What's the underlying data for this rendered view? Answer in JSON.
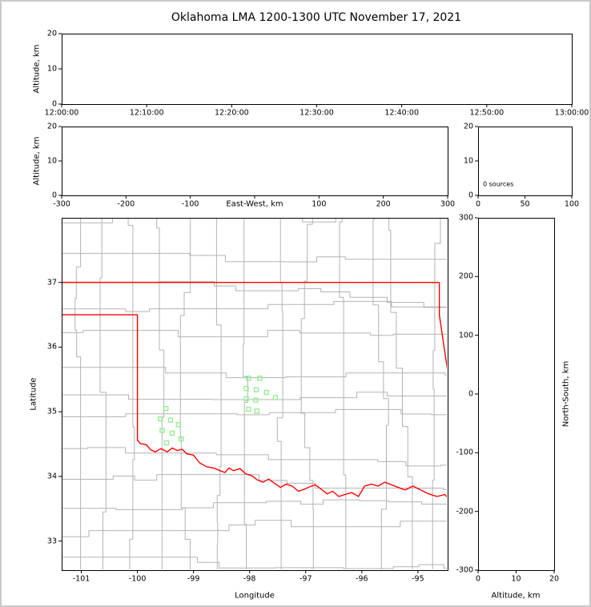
{
  "figure": {
    "title": "Oklahoma LMA 1200-1300 UTC November 17, 2021"
  },
  "labels": {
    "altitude": "Altitude, km",
    "east_west": "East-West, km",
    "north_south": "North-South, km",
    "latitude": "Latitude",
    "longitude": "Longitude",
    "sources_annotation": "0 sources"
  },
  "colors": {
    "axis": "#000000",
    "state_border": "#ff0000",
    "county_line": "#b3b3b3",
    "station_marker": "#90ee90",
    "figure_border": "#c9c9c9",
    "background": "#ffffff"
  },
  "chart_data": [
    {
      "id": "altitude_vs_time",
      "type": "scatter",
      "title": "",
      "xlabel": "",
      "ylabel": "Altitude, km",
      "xlim": [
        0,
        3600
      ],
      "ylim": [
        0,
        20
      ],
      "x_ticks": {
        "values": [
          0,
          600,
          1200,
          1800,
          2400,
          3000,
          3600
        ],
        "labels": [
          "12:00:00",
          "12:10:00",
          "12:20:00",
          "12:30:00",
          "12:40:00",
          "12:50:00",
          "13:00:00"
        ]
      },
      "y_ticks": {
        "values": [
          0,
          10,
          20
        ],
        "labels": [
          "0",
          "10",
          "20"
        ]
      },
      "points": []
    },
    {
      "id": "altitude_vs_east_west",
      "type": "scatter",
      "title": "",
      "xlabel": "East-West, km",
      "ylabel": "Altitude, km",
      "xlim": [
        -300,
        300
      ],
      "ylim": [
        0,
        20
      ],
      "x_ticks": {
        "values": [
          -300,
          -200,
          -100,
          0,
          100,
          200,
          300
        ],
        "labels": [
          "-300",
          "-200",
          "-100",
          "",
          "100",
          "200",
          "300"
        ]
      },
      "y_ticks": {
        "values": [
          0,
          10,
          20
        ],
        "labels": [
          "0",
          "10",
          "20"
        ]
      },
      "points": []
    },
    {
      "id": "altitude_histogram",
      "type": "line",
      "title": "",
      "xlabel": "",
      "ylabel": "",
      "annotation": "0 sources",
      "xlim": [
        0,
        100
      ],
      "ylim": [
        0,
        20
      ],
      "x_ticks": {
        "values": [
          0,
          50,
          100
        ],
        "labels": [
          "0",
          "50",
          "100"
        ]
      },
      "y_ticks": {
        "values": [
          0,
          10,
          20
        ],
        "labels": [
          "0",
          "10",
          "20"
        ]
      },
      "points": []
    },
    {
      "id": "plan_view_map",
      "type": "scatter",
      "title": "",
      "xlabel": "Longitude",
      "ylabel": "Latitude",
      "xlim": [
        -101.35,
        -94.47
      ],
      "ylim": [
        32.55,
        38.0
      ],
      "x_ticks": {
        "values": [
          -101,
          -100,
          -99,
          -98,
          -97,
          -96,
          -95
        ],
        "labels": [
          "-101",
          "-100",
          "-99",
          "-98",
          "-97",
          "-96",
          "-95"
        ]
      },
      "y_ticks": {
        "values": [
          37,
          36,
          35,
          34,
          33
        ],
        "labels": [
          "37",
          "36",
          "35",
          "34",
          "33"
        ]
      },
      "points": [],
      "stations": [
        [
          -98.02,
          35.52
        ],
        [
          -97.82,
          35.52
        ],
        [
          -98.06,
          35.36
        ],
        [
          -97.88,
          35.34
        ],
        [
          -97.7,
          35.3
        ],
        [
          -98.06,
          35.2
        ],
        [
          -97.89,
          35.18
        ],
        [
          -98.02,
          35.04
        ],
        [
          -97.87,
          35.01
        ],
        [
          -97.54,
          35.22
        ],
        [
          -99.49,
          35.05
        ],
        [
          -99.59,
          34.89
        ],
        [
          -99.41,
          34.87
        ],
        [
          -99.27,
          34.8
        ],
        [
          -99.56,
          34.71
        ],
        [
          -99.38,
          34.67
        ],
        [
          -99.48,
          34.52
        ],
        [
          -99.22,
          34.58
        ]
      ],
      "state_border_lines": [
        [
          [
            -101.35,
            37.0
          ],
          [
            -94.618,
            37.0
          ]
        ],
        [
          [
            -94.618,
            37.0
          ],
          [
            -94.618,
            36.5
          ],
          [
            -94.43,
            35.39
          ],
          [
            -94.43,
            33.64
          ]
        ],
        [
          [
            -101.35,
            36.5
          ],
          [
            -100.0,
            36.5
          ],
          [
            -100.0,
            34.563
          ],
          [
            -99.95,
            34.51
          ],
          [
            -99.84,
            34.49
          ],
          [
            -99.76,
            34.41
          ],
          [
            -99.68,
            34.38
          ],
          [
            -99.58,
            34.43
          ],
          [
            -99.47,
            34.38
          ],
          [
            -99.38,
            34.44
          ],
          [
            -99.29,
            34.4
          ],
          [
            -99.2,
            34.42
          ],
          [
            -99.12,
            34.35
          ],
          [
            -99.0,
            34.33
          ],
          [
            -98.89,
            34.21
          ],
          [
            -98.77,
            34.15
          ],
          [
            -98.64,
            34.13
          ],
          [
            -98.53,
            34.09
          ],
          [
            -98.44,
            34.06
          ],
          [
            -98.37,
            34.13
          ],
          [
            -98.29,
            34.09
          ],
          [
            -98.17,
            34.12
          ],
          [
            -98.07,
            34.04
          ],
          [
            -97.96,
            34.01
          ],
          [
            -97.87,
            33.95
          ],
          [
            -97.76,
            33.91
          ],
          [
            -97.66,
            33.96
          ],
          [
            -97.55,
            33.89
          ],
          [
            -97.45,
            33.83
          ],
          [
            -97.35,
            33.88
          ],
          [
            -97.24,
            33.85
          ],
          [
            -97.13,
            33.77
          ],
          [
            -97.03,
            33.8
          ],
          [
            -96.93,
            33.84
          ],
          [
            -96.83,
            33.87
          ],
          [
            -96.72,
            33.8
          ],
          [
            -96.62,
            33.73
          ],
          [
            -96.52,
            33.77
          ],
          [
            -96.41,
            33.69
          ],
          [
            -96.3,
            33.72
          ],
          [
            -96.18,
            33.75
          ],
          [
            -96.06,
            33.69
          ],
          [
            -95.95,
            33.85
          ],
          [
            -95.83,
            33.88
          ],
          [
            -95.71,
            33.85
          ],
          [
            -95.59,
            33.91
          ],
          [
            -95.47,
            33.87
          ],
          [
            -95.35,
            33.83
          ],
          [
            -95.23,
            33.79
          ],
          [
            -95.09,
            33.85
          ],
          [
            -94.95,
            33.79
          ],
          [
            -94.81,
            33.73
          ],
          [
            -94.66,
            33.69
          ],
          [
            -94.52,
            33.72
          ],
          [
            -94.43,
            33.64
          ]
        ]
      ]
    },
    {
      "id": "north_south_vs_altitude",
      "type": "scatter",
      "title": "",
      "xlabel": "Altitude, km",
      "ylabel": "North-South, km",
      "xlim": [
        0,
        20
      ],
      "ylim": [
        -300,
        300
      ],
      "x_ticks": {
        "values": [
          0,
          10,
          20
        ],
        "labels": [
          "0",
          "10",
          "20"
        ]
      },
      "y_ticks": {
        "values": [
          300,
          200,
          100,
          0,
          -100,
          -200,
          -300
        ],
        "labels": [
          "300",
          "200",
          "100",
          "0",
          "-100",
          "-200",
          "-300"
        ]
      },
      "points": []
    }
  ]
}
